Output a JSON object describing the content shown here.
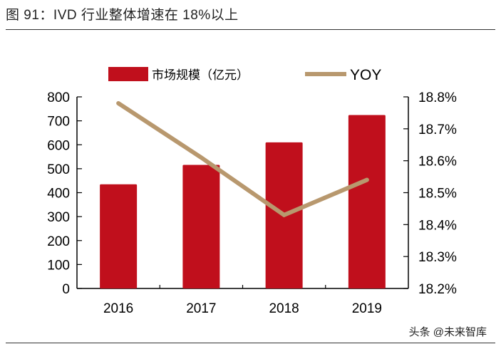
{
  "title": "图 91：IVD 行业整体增速在 18%以上",
  "watermark": "头条 @未来智库",
  "colors": {
    "bar": "#C00F1C",
    "line": "#B8986E"
  },
  "chart_data": {
    "type": "bar+line",
    "title": "",
    "categories": [
      "2016",
      "2017",
      "2018",
      "2019"
    ],
    "series": [
      {
        "name": "市场规模（亿元）",
        "type": "bar",
        "axis": "left",
        "values": [
          435,
          516,
          610,
          724
        ]
      },
      {
        "name": "YOY",
        "type": "line",
        "axis": "right",
        "values": [
          18.78,
          18.61,
          18.43,
          18.54
        ]
      }
    ],
    "left_axis": {
      "ylim": [
        0,
        800
      ],
      "ticks": [
        "0",
        "100",
        "200",
        "300",
        "400",
        "500",
        "600",
        "700",
        "800"
      ]
    },
    "right_axis": {
      "ylim": [
        18.2,
        18.8
      ],
      "ticks": [
        "18.2%",
        "18.3%",
        "18.4%",
        "18.5%",
        "18.6%",
        "18.7%",
        "18.8%"
      ]
    },
    "grid": false,
    "legend": "top"
  }
}
